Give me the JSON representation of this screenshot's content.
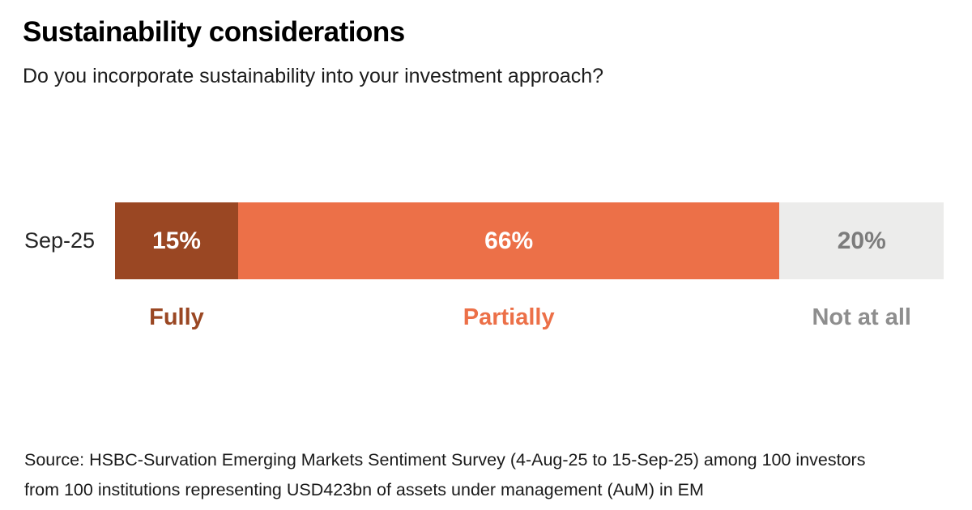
{
  "header": {
    "title": "Sustainability considerations",
    "subtitle": "Do you incorporate sustainability into your investment approach?"
  },
  "chart_data": {
    "type": "bar",
    "orientation": "horizontal-stacked",
    "title": "Sustainability considerations",
    "question": "Do you incorporate sustainability into your investment approach?",
    "row_label": "Sep-25",
    "xlim": [
      0,
      100
    ],
    "grid": false,
    "legend_position": "below-bar",
    "categories": [
      "Fully",
      "Partially",
      "Not at all"
    ],
    "values": [
      15,
      66,
      20
    ],
    "segments": [
      {
        "label": "Fully",
        "value": 15,
        "display": "15%",
        "color": "#9A4723",
        "value_text_color": "#ffffff",
        "label_color": "#9A4723"
      },
      {
        "label": "Partially",
        "value": 66,
        "display": "66%",
        "color": "#EC7048",
        "value_text_color": "#ffffff",
        "label_color": "#EC7048"
      },
      {
        "label": "Not at all",
        "value": 20,
        "display": "20%",
        "color": "#ECECEB",
        "value_text_color": "#7C7C7C",
        "label_color": "#8E8E8E"
      }
    ]
  },
  "source": {
    "line1": "Source: HSBC-Survation Emerging Markets Sentiment Survey (4-Aug-25 to 15-Sep-25) among 100 investors",
    "line2": "from 100 institutions representing USD423bn of assets under management (AuM) in EM"
  }
}
